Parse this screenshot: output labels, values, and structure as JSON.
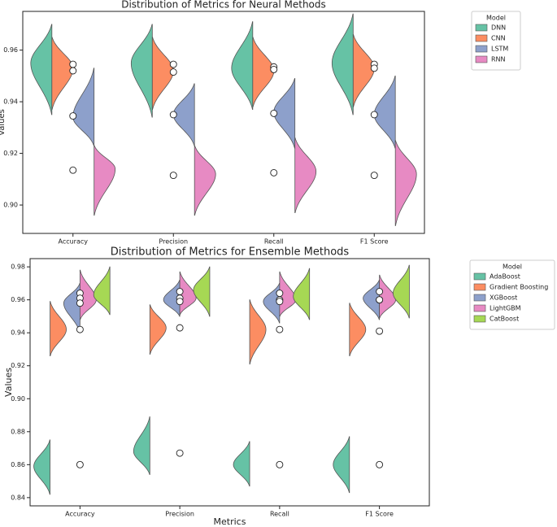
{
  "chart_data": [
    {
      "type": "violin",
      "title": "Distribution of Metrics for Neural Methods",
      "ylabel": "Values",
      "legend_title": "Model",
      "categories": [
        "Accuracy",
        "Precision",
        "Recall",
        "F1 Score"
      ],
      "series": [
        {
          "name": "DNN",
          "color": "#66c2a5",
          "values": [
            [
              0.935,
              0.955,
              0.97
            ],
            [
              0.934,
              0.955,
              0.97
            ],
            [
              0.937,
              0.953,
              0.971
            ],
            [
              0.935,
              0.955,
              0.974
            ]
          ]
        },
        {
          "name": "CNN",
          "color": "#fc8d62",
          "values": [
            [
              0.937,
              0.953,
              0.965
            ],
            [
              0.937,
              0.952,
              0.965
            ],
            [
              0.938,
              0.952,
              0.965
            ],
            [
              0.938,
              0.953,
              0.966
            ]
          ]
        },
        {
          "name": "LSTM",
          "color": "#8da0cb",
          "values": [
            [
              0.923,
              0.934,
              0.953
            ],
            [
              0.923,
              0.935,
              0.947
            ],
            [
              0.922,
              0.936,
              0.949
            ],
            [
              0.922,
              0.935,
              0.95
            ]
          ]
        },
        {
          "name": "RNN",
          "color": "#e78ac3",
          "values": [
            [
              0.896,
              0.914,
              0.923
            ],
            [
              0.896,
              0.912,
              0.923
            ],
            [
              0.897,
              0.913,
              0.926
            ],
            [
              0.892,
              0.912,
              0.925
            ]
          ]
        }
      ],
      "points": [
        [
          0.9545,
          0.952,
          0.9345,
          0.9135
        ],
        [
          0.9545,
          0.9515,
          0.935,
          0.9115
        ],
        [
          0.9535,
          0.9525,
          0.9355,
          0.9125
        ],
        [
          0.9545,
          0.953,
          0.935,
          0.9115
        ]
      ],
      "ylim": [
        0.889,
        0.975
      ],
      "yticks": [
        {
          "value": 0.9,
          "label": "0.90"
        },
        0.92,
        0.94,
        0.96
      ]
    },
    {
      "type": "violin",
      "title": "Distribution of Metrics for Ensemble Methods",
      "ylabel": "Values",
      "xlabel": "Metrics",
      "legend_title": "Model",
      "categories": [
        "Accuracy",
        "Precision",
        "Recall",
        "F1 Score"
      ],
      "series": [
        {
          "name": "AdaBoost",
          "color": "#66c2a5",
          "values": [
            [
              0.842,
              0.859,
              0.875
            ],
            [
              0.854,
              0.868,
              0.889
            ],
            [
              0.847,
              0.86,
              0.874
            ],
            [
              0.843,
              0.86,
              0.877
            ]
          ]
        },
        {
          "name": "Gradient Boosting",
          "color": "#fc8d62",
          "values": [
            [
              0.926,
              0.942,
              0.959
            ],
            [
              0.927,
              0.943,
              0.957
            ],
            [
              0.921,
              0.942,
              0.96
            ],
            [
              0.926,
              0.942,
              0.958
            ]
          ]
        },
        {
          "name": "XGBoost",
          "color": "#8da0cb",
          "values": [
            [
              0.94,
              0.958,
              0.97
            ],
            [
              0.95,
              0.96,
              0.972
            ],
            [
              0.946,
              0.959,
              0.97
            ],
            [
              0.948,
              0.961,
              0.972
            ]
          ]
        },
        {
          "name": "LightGBM",
          "color": "#e78ac3",
          "values": [
            [
              0.948,
              0.96,
              0.978
            ],
            [
              0.951,
              0.961,
              0.977
            ],
            [
              0.95,
              0.96,
              0.977
            ],
            [
              0.949,
              0.96,
              0.975
            ]
          ]
        },
        {
          "name": "CatBoost",
          "color": "#a6d854",
          "values": [
            [
              0.951,
              0.963,
              0.98
            ],
            [
              0.95,
              0.966,
              0.98
            ],
            [
              0.948,
              0.962,
              0.979
            ],
            [
              0.949,
              0.964,
              0.981
            ]
          ]
        }
      ],
      "points": [
        [
          0.964,
          0.961,
          0.958,
          0.942,
          0.86
        ],
        [
          0.965,
          0.961,
          0.959,
          0.943,
          0.867
        ],
        [
          0.964,
          0.96,
          0.959,
          0.942,
          0.86
        ],
        [
          0.965,
          0.96,
          0.96,
          0.941,
          0.86
        ]
      ],
      "ylim": [
        0.835,
        0.985
      ],
      "yticks": [
        0.84,
        0.86,
        0.88,
        {
          "value": 0.9,
          "label": "0.90"
        },
        0.92,
        0.94,
        0.96,
        0.98
      ]
    }
  ]
}
